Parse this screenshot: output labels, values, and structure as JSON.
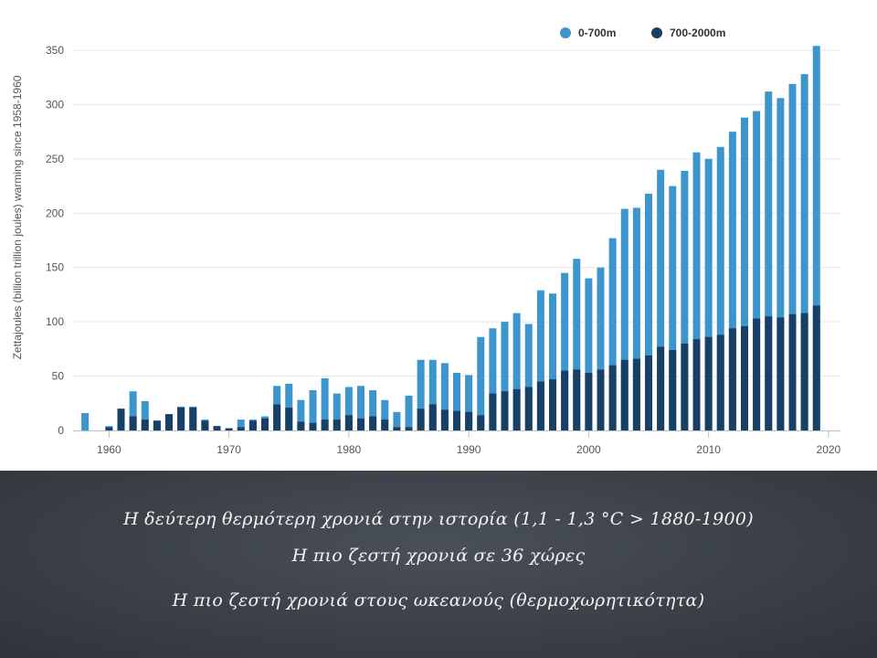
{
  "chart_data": {
    "type": "bar",
    "stacked": false,
    "ylabel": "Zettajoules (billion trillion joules) warming since 1958-1960",
    "xlabel": "",
    "ylim": [
      0,
      350
    ],
    "yticks": [
      "0",
      "50",
      "100",
      "150",
      "200",
      "250",
      "300",
      "350"
    ],
    "ytick_values": [
      0,
      50,
      100,
      150,
      200,
      250,
      300,
      350
    ],
    "xlim": [
      1957,
      2021
    ],
    "xticks": [
      "1960",
      "1970",
      "1980",
      "1990",
      "2000",
      "2010",
      "2020"
    ],
    "xtick_values": [
      1960,
      1970,
      1980,
      1990,
      2000,
      2010,
      2020
    ],
    "grid": true,
    "legend_position": "top-right",
    "x": [
      1958,
      1959,
      1960,
      1961,
      1962,
      1963,
      1964,
      1965,
      1966,
      1967,
      1968,
      1969,
      1970,
      1971,
      1972,
      1973,
      1974,
      1975,
      1976,
      1977,
      1978,
      1979,
      1980,
      1981,
      1982,
      1983,
      1984,
      1985,
      1986,
      1987,
      1988,
      1989,
      1990,
      1991,
      1992,
      1993,
      1994,
      1995,
      1996,
      1997,
      1998,
      1999,
      2000,
      2001,
      2002,
      2003,
      2004,
      2005,
      2006,
      2007,
      2008,
      2009,
      2010,
      2011,
      2012,
      2013,
      2014,
      2015,
      2016,
      2017,
      2018,
      2019,
      2020
    ],
    "series": [
      {
        "name": "0-700m",
        "color": "#3d95cd",
        "values": [
          16,
          0,
          4,
          20,
          36,
          27,
          9,
          15,
          22,
          22,
          10,
          4,
          2,
          10,
          10,
          13,
          41,
          43,
          28,
          37,
          48,
          34,
          40,
          41,
          37,
          28,
          17,
          32,
          65,
          65,
          62,
          53,
          51,
          86,
          94,
          100,
          108,
          98,
          129,
          126,
          145,
          158,
          140,
          150,
          177,
          204,
          205,
          218,
          240,
          225,
          239,
          256,
          250,
          261,
          275,
          288,
          294,
          312,
          306,
          319,
          328,
          354,
          0
        ]
      },
      {
        "name": "700-2000m",
        "color": "#183f66",
        "values": [
          0,
          0,
          3,
          20,
          13,
          10,
          9,
          15,
          21,
          21,
          9,
          4,
          2,
          3,
          9,
          11,
          24,
          21,
          8,
          7,
          10,
          10,
          14,
          11,
          13,
          10,
          3,
          3,
          20,
          24,
          19,
          18,
          17,
          14,
          34,
          36,
          38,
          40,
          45,
          47,
          55,
          56,
          53,
          56,
          60,
          65,
          66,
          69,
          77,
          74,
          80,
          84,
          86,
          88,
          94,
          96,
          103,
          105,
          104,
          107,
          108,
          115,
          0
        ]
      }
    ]
  },
  "caption": {
    "line1": "Η δεύτερη θερμότερη χρονιά στην ιστορία (1,1 - 1,3 °C > 1880-1900)",
    "line2": "Η πιο ζεστή χρονιά σε 36 χώρες",
    "line3": "Η πιο ζεστή χρονιά στους ωκεανούς (θερμοχωρητικότητα)"
  }
}
